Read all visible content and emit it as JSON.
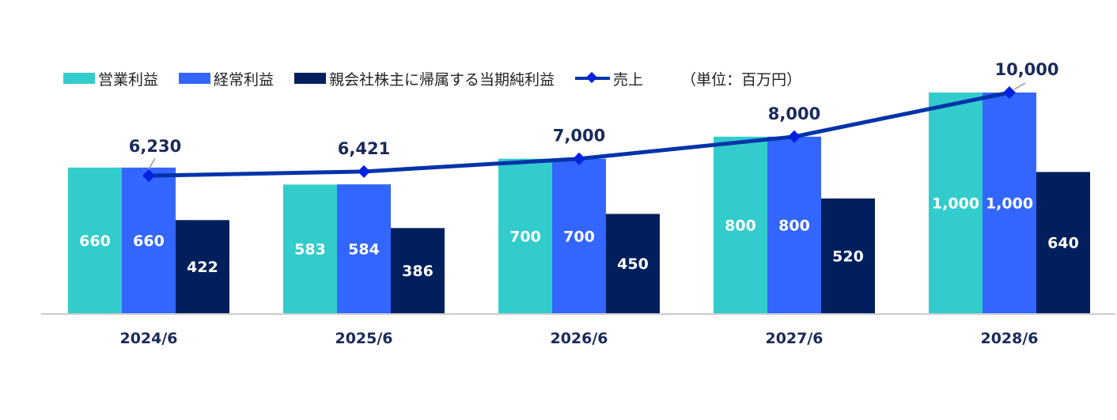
{
  "legend": {
    "operating_profit": "営業利益",
    "ordinary_profit": "経常利益",
    "net_income": "親会社株主に帰属する当期純利益",
    "sales": "売上",
    "unit": "（単位：百万円）"
  },
  "colors": {
    "operating_profit": "#33cccc",
    "ordinary_profit": "#3366ff",
    "net_income": "#001f5c",
    "sales": "#0033aa",
    "sales_marker": "#0022dd",
    "category_label": "#1a2a5a",
    "axis": "#cccccc"
  },
  "chart_data": {
    "type": "bar",
    "categories": [
      "2024/6",
      "2025/6",
      "2026/6",
      "2027/6",
      "2028/6"
    ],
    "series": [
      {
        "name": "営業利益",
        "type": "bar",
        "values": [
          660,
          583,
          700,
          800,
          1000
        ],
        "labels": [
          "660",
          "583",
          "700",
          "800",
          "1,000"
        ]
      },
      {
        "name": "経常利益",
        "type": "bar",
        "values": [
          660,
          584,
          700,
          800,
          1000
        ],
        "labels": [
          "660",
          "584",
          "700",
          "800",
          "1,000"
        ]
      },
      {
        "name": "親会社株主に帰属する当期純利益",
        "type": "bar",
        "values": [
          422,
          386,
          450,
          520,
          640
        ],
        "labels": [
          "422",
          "386",
          "450",
          "520",
          "640"
        ]
      },
      {
        "name": "売上",
        "type": "line",
        "axis": "secondary",
        "values": [
          6230,
          6421,
          7000,
          8000,
          10000
        ],
        "labels": [
          "6,230",
          "6,421",
          "7,000",
          "8,000",
          "10,000"
        ]
      }
    ],
    "bar_ylim": [
      0,
      1000
    ],
    "line_ylim": [
      0,
      10000
    ],
    "legend_position": "top",
    "grid": false
  }
}
